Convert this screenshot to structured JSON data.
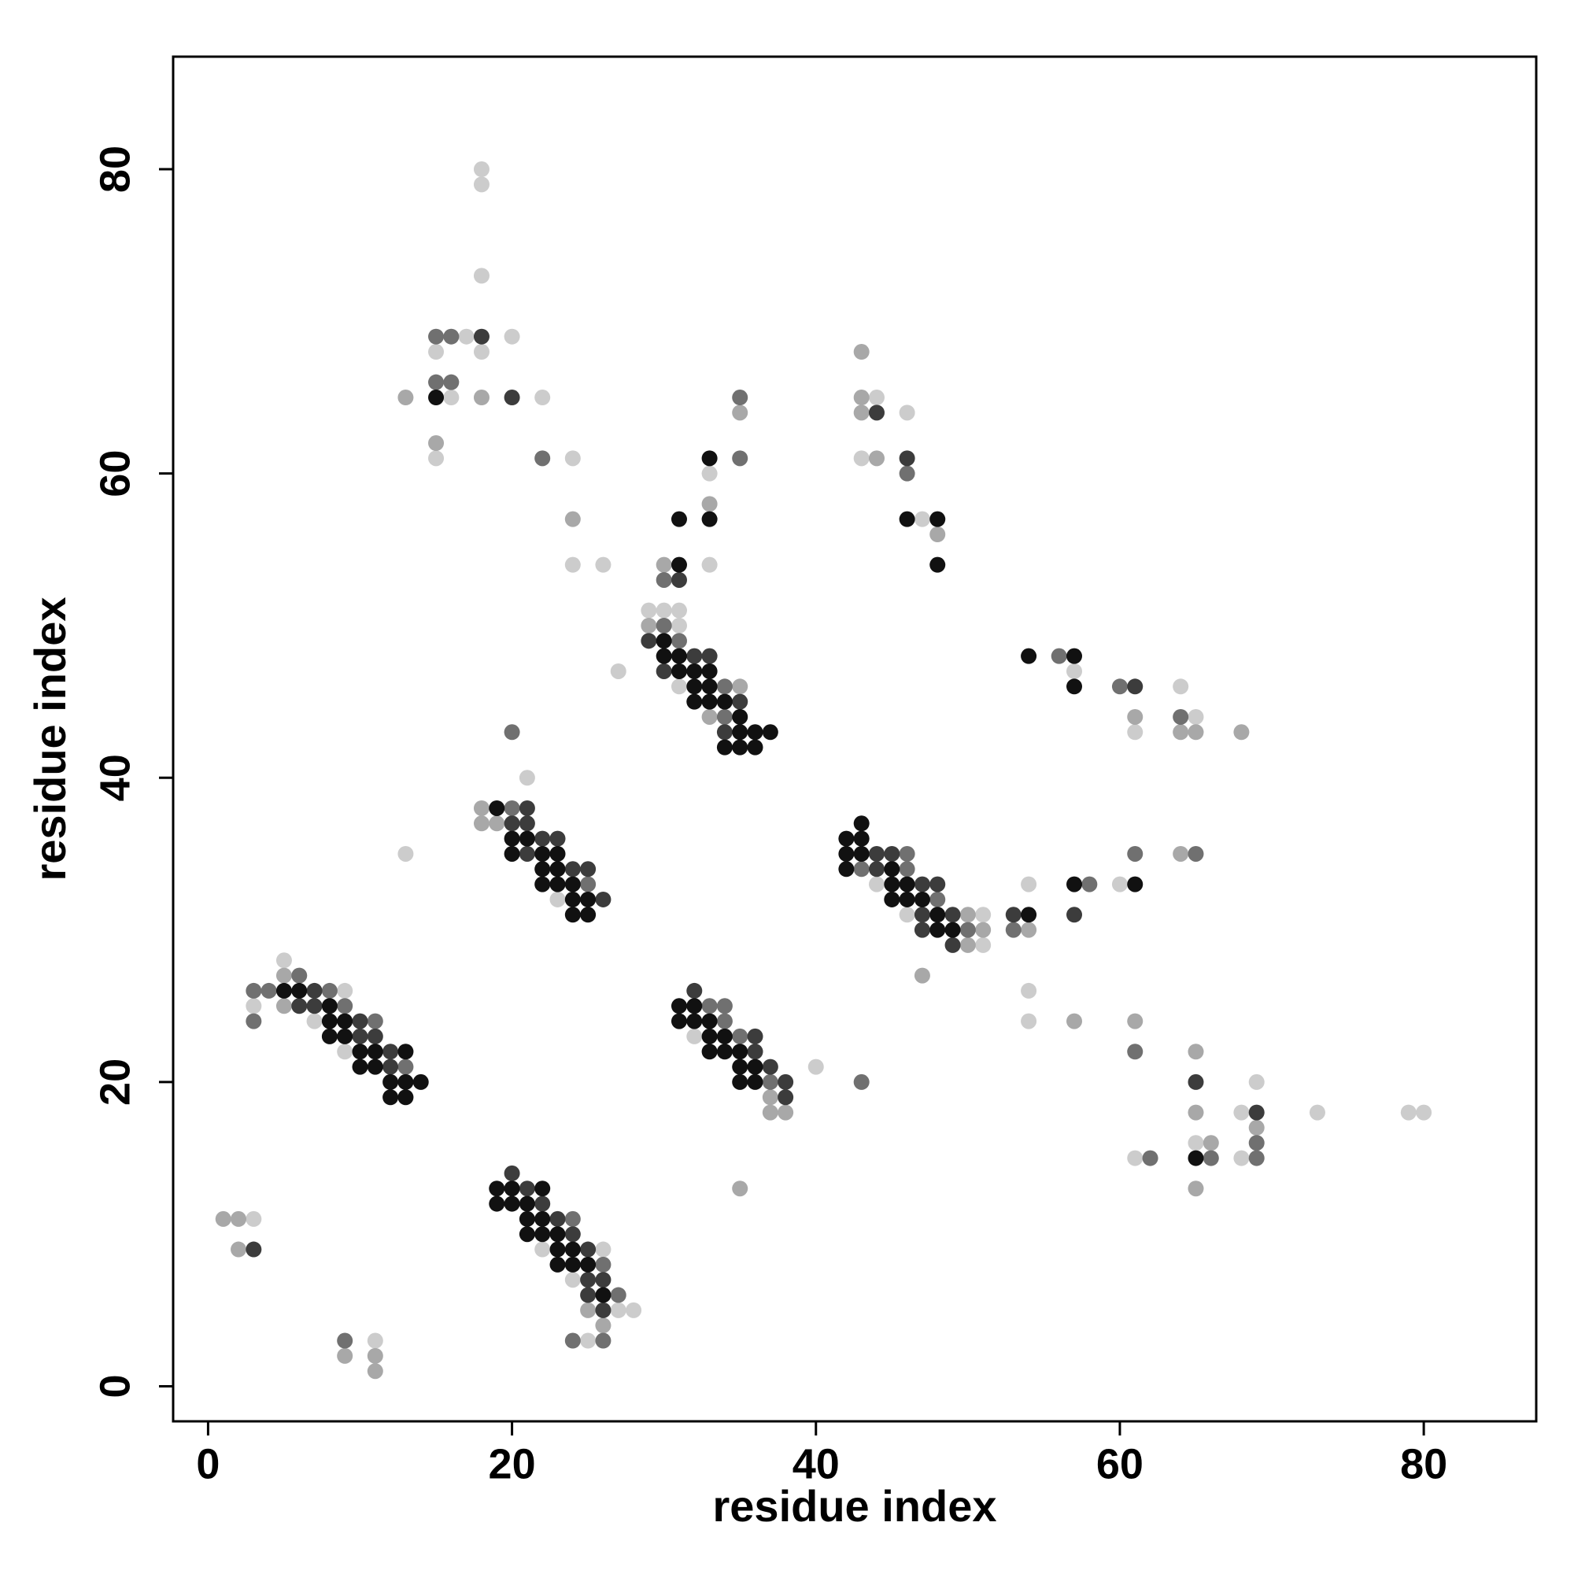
{
  "chart_data": {
    "type": "scatter",
    "xlabel": "residue index",
    "ylabel": "residue index",
    "xlim": [
      -2.3,
      87.4
    ],
    "ylim": [
      -2.3,
      87.4
    ],
    "xticks": [
      0,
      20,
      40,
      60,
      80
    ],
    "yticks": [
      0,
      20,
      40,
      60,
      80
    ],
    "grid": false,
    "series": [
      {
        "color": "#cccccc",
        "x": [
          5,
          9,
          3,
          7,
          9,
          23,
          21,
          13,
          22,
          26,
          24,
          27,
          28,
          25,
          32,
          40,
          29,
          30,
          31,
          31,
          31,
          27,
          33,
          24,
          26,
          33,
          24,
          22,
          20,
          16,
          15,
          18,
          17,
          18,
          18,
          18,
          15,
          44,
          46,
          51,
          51,
          54,
          60,
          44,
          46,
          43,
          47,
          57,
          61,
          64,
          65,
          54,
          54,
          69,
          68,
          65,
          68,
          61,
          73,
          79,
          80,
          3,
          11
        ],
        "y": [
          28,
          26,
          25,
          24,
          22,
          32,
          40,
          35,
          9,
          9,
          7,
          5,
          5,
          3,
          23,
          21,
          51,
          51,
          51,
          50,
          46,
          47,
          54,
          54,
          54,
          60,
          61,
          65,
          69,
          65,
          68,
          68,
          69,
          73,
          79,
          80,
          61,
          33,
          31,
          31,
          29,
          33,
          33,
          65,
          64,
          61,
          57,
          47,
          43,
          46,
          44,
          26,
          24,
          20,
          18,
          16,
          15,
          15,
          18,
          18,
          18,
          11,
          3
        ]
      },
      {
        "color": "#a8a8a8",
        "x": [
          5,
          5,
          18,
          18,
          19,
          25,
          26,
          37,
          37,
          38,
          35,
          29,
          35,
          33,
          30,
          33,
          35,
          24,
          13,
          18,
          15,
          50,
          51,
          50,
          54,
          47,
          64,
          43,
          43,
          43,
          44,
          48,
          61,
          64,
          65,
          68,
          57,
          61,
          65,
          65,
          69,
          66,
          65,
          1,
          2,
          2,
          9,
          11,
          11
        ],
        "y": [
          27,
          25,
          38,
          37,
          37,
          5,
          4,
          19,
          18,
          18,
          13,
          50,
          46,
          44,
          54,
          58,
          64,
          57,
          65,
          65,
          62,
          31,
          30,
          29,
          30,
          27,
          35,
          68,
          65,
          64,
          61,
          56,
          44,
          43,
          43,
          43,
          24,
          24,
          22,
          18,
          17,
          16,
          13,
          11,
          11,
          9,
          2,
          2,
          1
        ]
      },
      {
        "color": "#707070",
        "x": [
          3,
          4,
          8,
          6,
          9,
          3,
          11,
          13,
          20,
          25,
          20,
          24,
          26,
          27,
          24,
          26,
          33,
          34,
          34,
          35,
          37,
          30,
          31,
          34,
          34,
          30,
          35,
          35,
          22,
          15,
          16,
          15,
          16,
          46,
          43,
          46,
          48,
          50,
          53,
          58,
          61,
          65,
          43,
          46,
          56,
          60,
          64,
          61,
          69,
          66,
          69,
          62,
          9
        ],
        "y": [
          26,
          26,
          26,
          27,
          25,
          24,
          24,
          21,
          38,
          33,
          43,
          11,
          8,
          6,
          3,
          3,
          25,
          25,
          24,
          23,
          20,
          50,
          49,
          46,
          44,
          53,
          61,
          65,
          61,
          66,
          66,
          69,
          69,
          35,
          34,
          34,
          32,
          30,
          30,
          33,
          35,
          35,
          20,
          60,
          48,
          46,
          44,
          22,
          16,
          15,
          15,
          15,
          3
        ]
      },
      {
        "color": "#3c3c3c",
        "x": [
          7,
          6,
          7,
          10,
          10,
          11,
          12,
          12,
          21,
          20,
          21,
          22,
          23,
          21,
          24,
          25,
          26,
          20,
          21,
          22,
          23,
          24,
          25,
          25,
          26,
          25,
          26,
          32,
          36,
          36,
          37,
          38,
          38,
          29,
          32,
          33,
          30,
          35,
          34,
          31,
          20,
          18,
          44,
          45,
          44,
          47,
          48,
          47,
          49,
          47,
          49,
          53,
          57,
          44,
          46,
          61,
          65,
          69,
          3
        ],
        "y": [
          26,
          25,
          25,
          24,
          23,
          23,
          22,
          21,
          38,
          37,
          37,
          36,
          36,
          35,
          34,
          34,
          32,
          14,
          13,
          12,
          11,
          10,
          9,
          7,
          7,
          6,
          5,
          26,
          23,
          22,
          21,
          20,
          19,
          49,
          48,
          48,
          47,
          45,
          43,
          53,
          65,
          69,
          35,
          35,
          34,
          33,
          33,
          31,
          31,
          30,
          29,
          31,
          31,
          64,
          61,
          46,
          20,
          18,
          9
        ]
      },
      {
        "color": "#111111",
        "x": [
          5,
          6,
          8,
          8,
          9,
          8,
          9,
          10,
          11,
          13,
          10,
          11,
          12,
          13,
          14,
          12,
          13,
          19,
          20,
          21,
          20,
          22,
          23,
          22,
          23,
          22,
          23,
          24,
          24,
          25,
          24,
          25,
          19,
          20,
          22,
          19,
          20,
          21,
          21,
          22,
          21,
          22,
          23,
          23,
          24,
          23,
          24,
          25,
          26,
          31,
          32,
          31,
          32,
          33,
          33,
          34,
          33,
          34,
          35,
          35,
          36,
          35,
          36,
          30,
          30,
          31,
          31,
          32,
          33,
          32,
          33,
          32,
          33,
          34,
          35,
          35,
          36,
          37,
          34,
          35,
          36,
          31,
          31,
          33,
          33,
          15,
          43,
          42,
          43,
          42,
          43,
          42,
          45,
          45,
          46,
          45,
          46,
          47,
          48,
          48,
          49,
          54,
          57,
          61,
          46,
          48,
          48,
          54,
          57,
          57,
          65
        ],
        "y": [
          26,
          26,
          25,
          24,
          24,
          23,
          23,
          22,
          22,
          22,
          21,
          21,
          20,
          20,
          20,
          19,
          19,
          38,
          36,
          36,
          35,
          35,
          35,
          34,
          34,
          33,
          33,
          33,
          32,
          32,
          31,
          31,
          13,
          13,
          13,
          12,
          12,
          12,
          11,
          11,
          10,
          10,
          10,
          9,
          9,
          8,
          8,
          8,
          6,
          25,
          25,
          24,
          24,
          24,
          23,
          23,
          22,
          22,
          22,
          21,
          21,
          20,
          20,
          49,
          48,
          48,
          47,
          47,
          47,
          46,
          46,
          45,
          45,
          45,
          44,
          43,
          43,
          43,
          42,
          42,
          42,
          54,
          57,
          57,
          61,
          65,
          37,
          36,
          36,
          35,
          35,
          34,
          34,
          33,
          33,
          32,
          32,
          32,
          31,
          30,
          30,
          31,
          33,
          33,
          57,
          57,
          54,
          48,
          48,
          46,
          15
        ]
      }
    ]
  }
}
